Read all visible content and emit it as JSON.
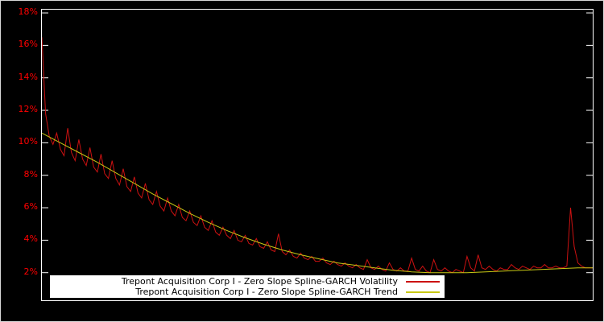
{
  "chart_data": {
    "type": "line",
    "title": "",
    "xlabel": "",
    "ylabel": "",
    "ylim": [
      0.3,
      18.2
    ],
    "yticks": [
      2,
      4,
      6,
      8,
      10,
      12,
      14,
      16,
      18
    ],
    "ytick_suffix": "%",
    "grid": false,
    "legend_position": "bottom-center-inside",
    "background_color": "#000000",
    "frame_color": "#ffffff",
    "tick_label_color": "#ff0000",
    "series": [
      {
        "name": "Trepont Acquisition Corp I - Zero Slope Spline-GARCH Volatility",
        "color": "#cc1111",
        "values": [
          16.5,
          11.8,
          10.4,
          9.9,
          10.6,
          9.6,
          9.2,
          10.9,
          9.4,
          8.9,
          10.2,
          9.0,
          8.6,
          9.7,
          8.5,
          8.2,
          9.3,
          8.1,
          7.8,
          8.9,
          7.8,
          7.4,
          8.4,
          7.3,
          7.0,
          7.9,
          6.9,
          6.6,
          7.5,
          6.5,
          6.2,
          7.0,
          6.1,
          5.8,
          6.6,
          5.8,
          5.5,
          6.2,
          5.4,
          5.2,
          5.8,
          5.1,
          4.9,
          5.5,
          4.8,
          4.6,
          5.2,
          4.5,
          4.3,
          4.8,
          4.3,
          4.1,
          4.6,
          4.0,
          3.9,
          4.3,
          3.8,
          3.7,
          4.1,
          3.6,
          3.5,
          3.9,
          3.4,
          3.3,
          4.4,
          3.3,
          3.1,
          3.4,
          3.0,
          2.9,
          3.2,
          2.9,
          2.8,
          3.0,
          2.7,
          2.7,
          2.9,
          2.6,
          2.5,
          2.7,
          2.5,
          2.4,
          2.6,
          2.4,
          2.3,
          2.5,
          2.3,
          2.2,
          2.8,
          2.3,
          2.2,
          2.4,
          2.2,
          2.1,
          2.6,
          2.2,
          2.1,
          2.3,
          2.1,
          2.1,
          2.9,
          2.2,
          2.1,
          2.4,
          2.1,
          2.0,
          2.8,
          2.2,
          2.1,
          2.3,
          2.1,
          2.0,
          2.2,
          2.1,
          2.0,
          3.0,
          2.3,
          2.1,
          3.1,
          2.3,
          2.2,
          2.4,
          2.2,
          2.1,
          2.3,
          2.2,
          2.2,
          2.5,
          2.3,
          2.2,
          2.4,
          2.3,
          2.2,
          2.4,
          2.3,
          2.3,
          2.5,
          2.3,
          2.3,
          2.4,
          2.3,
          2.3,
          2.4,
          6.0,
          3.6,
          2.6,
          2.4,
          2.3,
          2.3,
          2.3
        ]
      },
      {
        "name": "Trepont Acquisition Corp I - Zero Slope Spline-GARCH Trend",
        "color": "#c8c814",
        "keypoints": [
          [
            0,
            10.6
          ],
          [
            5,
            10.0
          ],
          [
            10,
            9.4
          ],
          [
            15,
            8.8
          ],
          [
            20,
            8.15
          ],
          [
            25,
            7.5
          ],
          [
            30,
            6.85
          ],
          [
            35,
            6.25
          ],
          [
            40,
            5.65
          ],
          [
            45,
            5.1
          ],
          [
            50,
            4.6
          ],
          [
            55,
            4.15
          ],
          [
            60,
            3.75
          ],
          [
            65,
            3.4
          ],
          [
            70,
            3.1
          ],
          [
            75,
            2.85
          ],
          [
            80,
            2.6
          ],
          [
            85,
            2.45
          ],
          [
            90,
            2.3
          ],
          [
            95,
            2.15
          ],
          [
            100,
            2.05
          ],
          [
            105,
            2.0
          ],
          [
            110,
            2.0
          ],
          [
            115,
            2.0
          ],
          [
            120,
            2.05
          ],
          [
            125,
            2.1
          ],
          [
            130,
            2.15
          ],
          [
            135,
            2.2
          ],
          [
            140,
            2.25
          ],
          [
            145,
            2.3
          ],
          [
            149,
            2.3
          ]
        ]
      }
    ]
  }
}
